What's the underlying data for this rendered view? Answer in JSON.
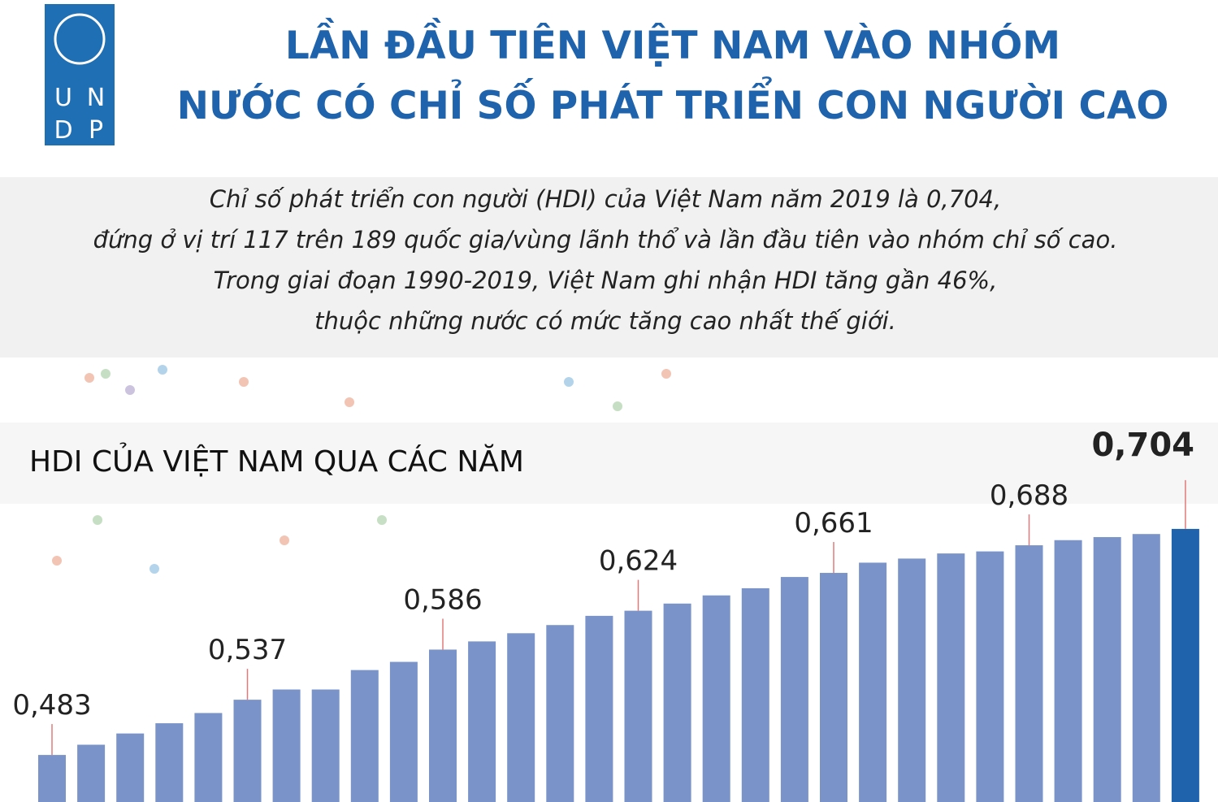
{
  "header": {
    "logo": [
      "U",
      "N",
      "D",
      "P"
    ],
    "title": [
      "LẦN ĐẦU TIÊN VIỆT NAM VÀO NHÓM",
      "NƯỚC CÓ CHỈ SỐ PHÁT TRIỂN CON NGƯỜI CAO"
    ]
  },
  "intro": [
    "Chỉ số phát triển con người (HDI) của Việt Nam năm 2019 là 0,704,",
    "đứng ở vị trí 117 trên 189 quốc gia/vùng lãnh thổ và lần đầu tiên vào nhóm chỉ số cao.",
    "Trong giai đoạn 1990-2019, Việt Nam ghi nhận HDI tăng gần 46%,",
    "thuộc những nước có mức tăng cao nhất thế giới."
  ],
  "chart_data": {
    "type": "bar",
    "title": "HDI CỦA VIỆT NAM QUA CÁC NĂM",
    "values": [
      0.483,
      0.493,
      0.504,
      0.514,
      0.524,
      0.537,
      0.547,
      0.547,
      0.566,
      0.574,
      0.586,
      0.594,
      0.602,
      0.61,
      0.619,
      0.624,
      0.631,
      0.639,
      0.646,
      0.657,
      0.661,
      0.671,
      0.675,
      0.68,
      0.682,
      0.688,
      0.693,
      0.696,
      0.699,
      0.704
    ],
    "value_labels": [
      "0,483",
      null,
      null,
      null,
      null,
      "0,537",
      null,
      null,
      null,
      null,
      "0,586",
      null,
      null,
      null,
      null,
      "0,624",
      null,
      null,
      null,
      null,
      "0,661",
      null,
      null,
      null,
      null,
      "0,688",
      null,
      null,
      null,
      "0,704"
    ],
    "color": "#7a93c9",
    "colors": [
      "#7a93c9",
      "#7a93c9",
      "#7a93c9",
      "#7a93c9",
      "#7a93c9",
      "#7a93c9",
      "#7a93c9",
      "#7a93c9",
      "#7a93c9",
      "#7a93c9",
      "#7a93c9",
      "#7a93c9",
      "#7a93c9",
      "#7a93c9",
      "#7a93c9",
      "#7a93c9",
      "#7a93c9",
      "#7a93c9",
      "#7a93c9",
      "#7a93c9",
      "#7a93c9",
      "#7a93c9",
      "#7a93c9",
      "#7a93c9",
      "#7a93c9",
      "#7a93c9",
      "#7a93c9",
      "#7a93c9",
      "#7a93c9",
      "#1f63ad"
    ],
    "ylim": [
      0.437,
      0.808
    ]
  }
}
